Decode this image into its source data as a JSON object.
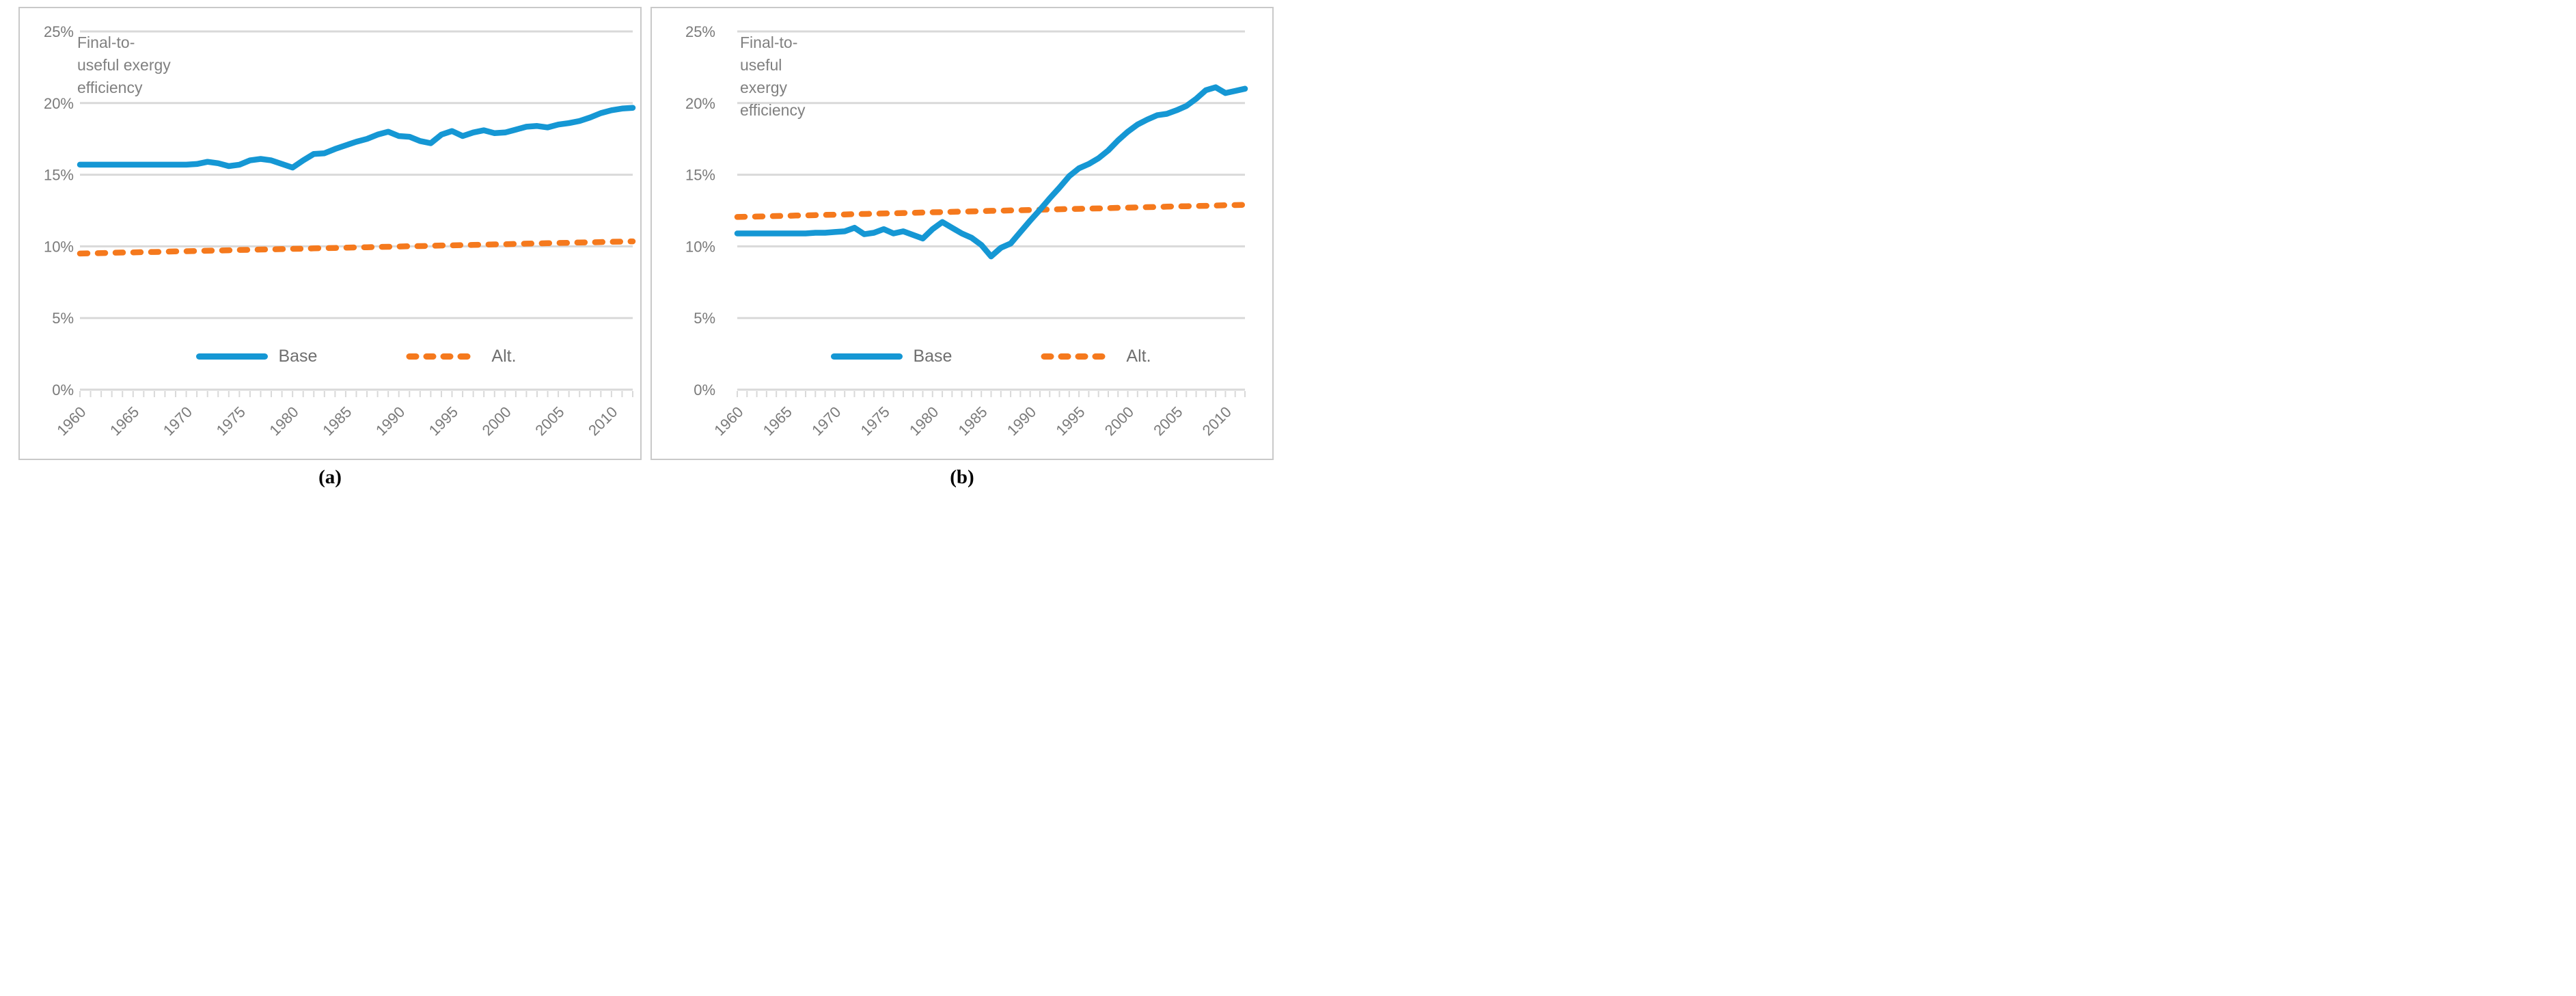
{
  "colors": {
    "base_blue": "#1597D4",
    "alt_orange": "#F5791D",
    "gridline": "#D9D9D9",
    "tick": "#D9D9D9",
    "panel_border": "#C9C9C9",
    "axis_text": "#7A7A7A",
    "annotation_text": "#808080",
    "background": "#FFFFFF"
  },
  "figure": {
    "caption_a": "(a)",
    "caption_b": "(b)"
  },
  "chart_data": [
    {
      "type": "line",
      "panel": "a",
      "caption": "(a)",
      "y_axis_annotation_lines": [
        "Final-to-",
        "useful exergy",
        "efficiency"
      ],
      "x_tick_labels": [
        "1960",
        "1965",
        "1970",
        "1975",
        "1980",
        "1985",
        "1990",
        "1995",
        "2000",
        "2005",
        "2010"
      ],
      "x_tick_years": [
        1960,
        1965,
        1970,
        1975,
        1980,
        1985,
        1990,
        1995,
        2000,
        2005,
        2010
      ],
      "y_tick_labels": [
        "0%",
        "5%",
        "10%",
        "15%",
        "20%",
        "25%"
      ],
      "y_tick_values": [
        0,
        5,
        10,
        15,
        20,
        25
      ],
      "ylim": [
        0,
        25
      ],
      "grid": true,
      "legend_position": "bottom-center-inside",
      "x": [
        1960,
        1961,
        1962,
        1963,
        1964,
        1965,
        1966,
        1967,
        1968,
        1969,
        1970,
        1971,
        1972,
        1973,
        1974,
        1975,
        1976,
        1977,
        1978,
        1979,
        1980,
        1981,
        1982,
        1983,
        1984,
        1985,
        1986,
        1987,
        1988,
        1989,
        1990,
        1991,
        1992,
        1993,
        1994,
        1995,
        1996,
        1997,
        1998,
        1999,
        2000,
        2001,
        2002,
        2003,
        2004,
        2005,
        2006,
        2007,
        2008,
        2009,
        2010,
        2011,
        2012
      ],
      "series": [
        {
          "name": "Base",
          "style": "solid",
          "color": "#1597D4",
          "values": [
            15.7,
            15.7,
            15.7,
            15.7,
            15.7,
            15.7,
            15.7,
            15.7,
            15.7,
            15.7,
            15.7,
            15.75,
            15.9,
            15.8,
            15.6,
            15.7,
            16.0,
            16.1,
            16.0,
            15.75,
            15.5,
            16.0,
            16.45,
            16.5,
            16.8,
            17.05,
            17.3,
            17.5,
            17.8,
            18.0,
            17.7,
            17.65,
            17.35,
            17.2,
            17.8,
            18.05,
            17.7,
            17.95,
            18.1,
            17.9,
            17.95,
            18.15,
            18.35,
            18.4,
            18.3,
            18.5,
            18.6,
            18.75,
            19.0,
            19.3,
            19.5,
            19.62,
            19.67
          ]
        },
        {
          "name": "Alt.",
          "style": "dashed",
          "color": "#F5791D",
          "values": [
            9.5,
            9.52,
            9.53,
            9.55,
            9.57,
            9.58,
            9.6,
            9.61,
            9.63,
            9.65,
            9.66,
            9.68,
            9.7,
            9.71,
            9.73,
            9.75,
            9.76,
            9.78,
            9.79,
            9.81,
            9.83,
            9.84,
            9.86,
            9.88,
            9.89,
            9.91,
            9.93,
            9.94,
            9.96,
            9.97,
            9.99,
            10.01,
            10.02,
            10.04,
            10.06,
            10.07,
            10.09,
            10.1,
            10.12,
            10.14,
            10.15,
            10.17,
            10.19,
            10.2,
            10.22,
            10.24,
            10.25,
            10.27,
            10.28,
            10.3,
            10.32,
            10.33,
            10.35
          ]
        }
      ]
    },
    {
      "type": "line",
      "panel": "b",
      "caption": "(b)",
      "y_axis_annotation_lines": [
        "Final-to-",
        "useful",
        "exergy",
        "efficiency"
      ],
      "x_tick_labels": [
        "1960",
        "1965",
        "1970",
        "1975",
        "1980",
        "1985",
        "1990",
        "1995",
        "2000",
        "2005",
        "2010"
      ],
      "x_tick_years": [
        1960,
        1965,
        1970,
        1975,
        1980,
        1985,
        1990,
        1995,
        2000,
        2005,
        2010
      ],
      "y_tick_labels": [
        "0%",
        "5%",
        "10%",
        "15%",
        "20%",
        "25%"
      ],
      "y_tick_values": [
        0,
        5,
        10,
        15,
        20,
        25
      ],
      "ylim": [
        0,
        25
      ],
      "grid": true,
      "legend_position": "bottom-center-inside",
      "x": [
        1960,
        1961,
        1962,
        1963,
        1964,
        1965,
        1966,
        1967,
        1968,
        1969,
        1970,
        1971,
        1972,
        1973,
        1974,
        1975,
        1976,
        1977,
        1978,
        1979,
        1980,
        1981,
        1982,
        1983,
        1984,
        1985,
        1986,
        1987,
        1988,
        1989,
        1990,
        1991,
        1992,
        1993,
        1994,
        1995,
        1996,
        1997,
        1998,
        1999,
        2000,
        2001,
        2002,
        2003,
        2004,
        2005,
        2006,
        2007,
        2008,
        2009,
        2010,
        2011,
        2012
      ],
      "series": [
        {
          "name": "Base",
          "style": "solid",
          "color": "#1597D4",
          "values": [
            10.9,
            10.9,
            10.9,
            10.9,
            10.9,
            10.9,
            10.9,
            10.9,
            10.95,
            10.95,
            11.0,
            11.05,
            11.3,
            10.85,
            10.95,
            11.2,
            10.9,
            11.05,
            10.8,
            10.55,
            11.2,
            11.7,
            11.3,
            10.9,
            10.6,
            10.1,
            9.3,
            9.9,
            10.2,
            11.0,
            11.8,
            12.55,
            13.35,
            14.1,
            14.9,
            15.45,
            15.75,
            16.15,
            16.7,
            17.4,
            18.0,
            18.5,
            18.85,
            19.15,
            19.25,
            19.5,
            19.8,
            20.3,
            20.9,
            21.1,
            20.7,
            20.85,
            21.0
          ]
        },
        {
          "name": "Alt.",
          "style": "dashed",
          "color": "#F5791D",
          "values": [
            12.05,
            12.07,
            12.08,
            12.1,
            12.12,
            12.13,
            12.15,
            12.16,
            12.18,
            12.2,
            12.21,
            12.23,
            12.25,
            12.26,
            12.28,
            12.3,
            12.31,
            12.33,
            12.34,
            12.36,
            12.38,
            12.39,
            12.41,
            12.43,
            12.44,
            12.46,
            12.48,
            12.49,
            12.51,
            12.52,
            12.54,
            12.56,
            12.57,
            12.59,
            12.61,
            12.62,
            12.64,
            12.65,
            12.67,
            12.69,
            12.7,
            12.72,
            12.74,
            12.75,
            12.77,
            12.79,
            12.8,
            12.82,
            12.83,
            12.85,
            12.87,
            12.88,
            12.9
          ]
        }
      ]
    }
  ]
}
